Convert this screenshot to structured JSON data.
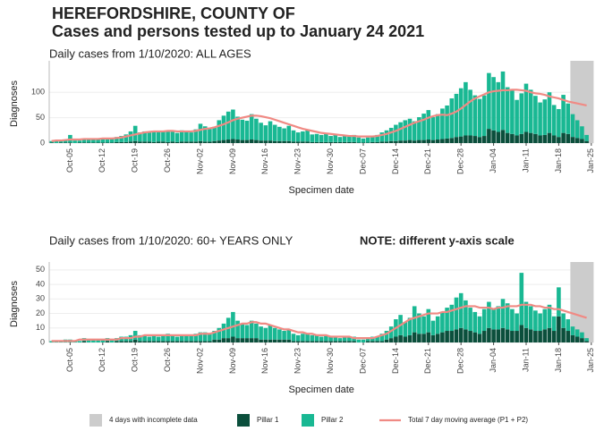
{
  "header": {
    "title": "HEREFORDSHIRE, COUNTY OF",
    "subtitle": "Cases and persons tested up to January 24 2021"
  },
  "chart_data": [
    {
      "type": "bar",
      "title": "Daily cases from 1/10/2020: ALL AGES",
      "ylabel": "Diagnoses",
      "xlabel": "Specimen date",
      "ylim": [
        0,
        155
      ],
      "yticks": [
        0,
        50,
        100
      ],
      "grid": true,
      "shade": {
        "name": "4 days with incomplete data",
        "color": "#cccccc",
        "days": 4
      },
      "categories": [
        null,
        null,
        null,
        null,
        "Oct-05",
        null,
        null,
        null,
        null,
        null,
        null,
        "Oct-12",
        null,
        null,
        null,
        null,
        null,
        null,
        "Oct-19",
        null,
        null,
        null,
        null,
        null,
        null,
        "Oct-26",
        null,
        null,
        null,
        null,
        null,
        null,
        "Nov-02",
        null,
        null,
        null,
        null,
        null,
        null,
        "Nov-09",
        null,
        null,
        null,
        null,
        null,
        null,
        "Nov-16",
        null,
        null,
        null,
        null,
        null,
        null,
        "Nov-23",
        null,
        null,
        null,
        null,
        null,
        null,
        "Nov-30",
        null,
        null,
        null,
        null,
        null,
        null,
        "Dec-07",
        null,
        null,
        null,
        null,
        null,
        null,
        "Dec-14",
        null,
        null,
        null,
        null,
        null,
        null,
        "Dec-21",
        null,
        null,
        null,
        null,
        null,
        null,
        "Dec-28",
        null,
        null,
        null,
        null,
        null,
        null,
        "Jan-04",
        null,
        null,
        null,
        null,
        null,
        null,
        "Jan-11",
        null,
        null,
        null,
        null,
        null,
        null,
        "Jan-18",
        null,
        null,
        null,
        null,
        null,
        null,
        "Jan-25"
      ],
      "series": [
        {
          "name": "Pillar 1",
          "type": "bar",
          "color": "#0b4f3c",
          "values": [
            1,
            0,
            1,
            1,
            1,
            0,
            1,
            1,
            1,
            1,
            1,
            1,
            1,
            1,
            2,
            2,
            2,
            3,
            4,
            3,
            3,
            3,
            2,
            3,
            3,
            2,
            3,
            2,
            3,
            3,
            3,
            3,
            4,
            3,
            3,
            4,
            5,
            6,
            7,
            8,
            7,
            6,
            6,
            7,
            6,
            5,
            5,
            5,
            4,
            4,
            4,
            4,
            3,
            3,
            3,
            3,
            2,
            2,
            2,
            2,
            2,
            2,
            2,
            2,
            2,
            2,
            1,
            1,
            1,
            2,
            2,
            3,
            3,
            4,
            4,
            5,
            5,
            6,
            5,
            6,
            6,
            7,
            6,
            7,
            8,
            9,
            10,
            12,
            13,
            15,
            15,
            14,
            12,
            14,
            28,
            25,
            22,
            26,
            20,
            18,
            15,
            18,
            22,
            20,
            18,
            15,
            16,
            20,
            15,
            12,
            20,
            18,
            12,
            10,
            8,
            4,
            null
          ]
        },
        {
          "name": "Pillar 2",
          "type": "bar",
          "color": "#19b893",
          "values": [
            3,
            5,
            4,
            6,
            15,
            5,
            4,
            6,
            7,
            8,
            6,
            8,
            7,
            9,
            10,
            12,
            15,
            20,
            30,
            18,
            20,
            18,
            22,
            19,
            21,
            23,
            20,
            18,
            22,
            20,
            18,
            24,
            34,
            30,
            25,
            28,
            40,
            48,
            55,
            58,
            45,
            40,
            38,
            50,
            42,
            35,
            30,
            38,
            32,
            28,
            25,
            30,
            22,
            18,
            20,
            22,
            15,
            16,
            14,
            18,
            12,
            14,
            10,
            12,
            11,
            14,
            10,
            8,
            10,
            12,
            14,
            18,
            22,
            26,
            32,
            36,
            40,
            42,
            38,
            45,
            52,
            58,
            45,
            50,
            60,
            65,
            78,
            85,
            95,
            105,
            90,
            80,
            75,
            80,
            110,
            105,
            98,
            115,
            90,
            85,
            70,
            80,
            95,
            85,
            75,
            65,
            70,
            80,
            60,
            55,
            75,
            60,
            45,
            35,
            25,
            12,
            null
          ]
        },
        {
          "name": "Total 7 day moving average (P1 + P2)",
          "type": "line",
          "color": "#f08a84",
          "values": [
            4,
            5,
            5,
            6,
            7,
            7,
            7,
            8,
            8,
            8,
            8,
            9,
            9,
            9,
            10,
            11,
            13,
            15,
            17,
            19,
            21,
            22,
            23,
            23,
            23,
            24,
            24,
            23,
            23,
            23,
            23,
            24,
            26,
            28,
            29,
            31,
            34,
            37,
            41,
            45,
            48,
            50,
            52,
            54,
            54,
            53,
            51,
            49,
            46,
            43,
            40,
            37,
            34,
            31,
            28,
            26,
            24,
            22,
            20,
            19,
            18,
            17,
            16,
            15,
            14,
            14,
            13,
            13,
            13,
            13,
            14,
            16,
            18,
            21,
            24,
            28,
            32,
            36,
            40,
            43,
            46,
            50,
            53,
            55,
            56,
            55,
            58,
            62,
            68,
            75,
            82,
            88,
            92,
            96,
            100,
            102,
            103,
            104,
            104,
            105,
            105,
            104,
            103,
            100,
            98,
            97,
            95,
            92,
            90,
            88,
            85,
            82,
            80,
            78,
            76,
            74,
            null
          ]
        }
      ]
    },
    {
      "type": "bar",
      "title": "Daily cases from 1/10/2020: 60+ YEARS ONLY",
      "note": "NOTE: different y-axis scale",
      "ylabel": "Diagnoses",
      "xlabel": "Specimen date",
      "ylim": [
        0,
        53
      ],
      "yticks": [
        0,
        10,
        20,
        30,
        40,
        50
      ],
      "grid": true,
      "shade": {
        "name": "4 days with incomplete data",
        "color": "#cccccc",
        "days": 4
      },
      "categories": [
        null,
        null,
        null,
        null,
        "Oct-05",
        null,
        null,
        null,
        null,
        null,
        null,
        "Oct-12",
        null,
        null,
        null,
        null,
        null,
        null,
        "Oct-19",
        null,
        null,
        null,
        null,
        null,
        null,
        "Oct-26",
        null,
        null,
        null,
        null,
        null,
        null,
        "Nov-02",
        null,
        null,
        null,
        null,
        null,
        null,
        "Nov-09",
        null,
        null,
        null,
        null,
        null,
        null,
        "Nov-16",
        null,
        null,
        null,
        null,
        null,
        null,
        "Nov-23",
        null,
        null,
        null,
        null,
        null,
        null,
        "Nov-30",
        null,
        null,
        null,
        null,
        null,
        null,
        "Dec-07",
        null,
        null,
        null,
        null,
        null,
        null,
        "Dec-14",
        null,
        null,
        null,
        null,
        null,
        null,
        "Dec-21",
        null,
        null,
        null,
        null,
        null,
        null,
        "Dec-28",
        null,
        null,
        null,
        null,
        null,
        null,
        "Jan-04",
        null,
        null,
        null,
        null,
        null,
        null,
        "Jan-11",
        null,
        null,
        null,
        null,
        null,
        null,
        "Jan-18",
        null,
        null,
        null,
        null,
        null,
        null,
        "Jan-25"
      ],
      "series": [
        {
          "name": "Pillar 1",
          "type": "bar",
          "color": "#0b4f3c",
          "values": [
            0,
            0,
            0,
            0,
            0,
            0,
            0,
            1,
            0,
            0,
            0,
            0,
            1,
            0,
            1,
            1,
            1,
            1,
            2,
            1,
            1,
            1,
            1,
            1,
            1,
            1,
            1,
            1,
            1,
            1,
            1,
            1,
            1,
            1,
            1,
            2,
            2,
            3,
            3,
            4,
            3,
            3,
            3,
            3,
            3,
            2,
            2,
            2,
            2,
            2,
            2,
            2,
            1,
            1,
            1,
            1,
            1,
            1,
            1,
            1,
            1,
            1,
            1,
            1,
            1,
            1,
            0,
            0,
            1,
            1,
            1,
            1,
            2,
            3,
            4,
            5,
            4,
            5,
            7,
            6,
            6,
            7,
            5,
            6,
            7,
            8,
            8,
            9,
            10,
            9,
            8,
            7,
            6,
            8,
            10,
            9,
            9,
            10,
            9,
            8,
            8,
            12,
            10,
            9,
            8,
            8,
            9,
            10,
            8,
            18,
            10,
            8,
            5,
            4,
            3,
            1,
            null
          ]
        },
        {
          "name": "Pillar 2",
          "type": "bar",
          "color": "#19b893",
          "values": [
            1,
            1,
            1,
            2,
            2,
            1,
            1,
            2,
            2,
            2,
            2,
            2,
            2,
            2,
            2,
            3,
            3,
            4,
            6,
            4,
            4,
            3,
            4,
            3,
            4,
            5,
            4,
            3,
            4,
            4,
            4,
            5,
            6,
            6,
            5,
            6,
            8,
            10,
            14,
            17,
            12,
            10,
            9,
            12,
            10,
            9,
            8,
            10,
            8,
            7,
            6,
            7,
            5,
            4,
            5,
            5,
            4,
            4,
            3,
            4,
            3,
            3,
            2,
            3,
            3,
            3,
            2,
            2,
            2,
            3,
            3,
            5,
            6,
            8,
            12,
            14,
            10,
            12,
            18,
            14,
            12,
            16,
            10,
            12,
            14,
            16,
            18,
            22,
            24,
            20,
            16,
            14,
            12,
            15,
            18,
            14,
            16,
            20,
            18,
            15,
            12,
            36,
            18,
            16,
            14,
            12,
            14,
            16,
            10,
            20,
            10,
            8,
            6,
            5,
            4,
            2,
            null
          ]
        },
        {
          "name": "Total 7 day moving average (P1 + P2)",
          "type": "line",
          "color": "#f08a84",
          "values": [
            1,
            1,
            1,
            1,
            1,
            1,
            2,
            2,
            2,
            2,
            2,
            2,
            2,
            2,
            2,
            3,
            3,
            3,
            4,
            4,
            5,
            5,
            5,
            5,
            5,
            5,
            5,
            5,
            5,
            5,
            5,
            5,
            6,
            6,
            6,
            7,
            8,
            9,
            10,
            11,
            12,
            13,
            13,
            14,
            14,
            13,
            13,
            12,
            11,
            10,
            9,
            9,
            8,
            7,
            7,
            6,
            6,
            5,
            5,
            5,
            4,
            4,
            4,
            4,
            4,
            3,
            3,
            3,
            3,
            3,
            4,
            5,
            6,
            8,
            10,
            12,
            14,
            16,
            17,
            18,
            19,
            20,
            20,
            20,
            21,
            21,
            22,
            23,
            24,
            25,
            25,
            25,
            24,
            24,
            24,
            23,
            24,
            24,
            25,
            25,
            25,
            26,
            26,
            26,
            25,
            25,
            24,
            24,
            23,
            23,
            22,
            21,
            20,
            19,
            18,
            17,
            null
          ]
        }
      ]
    }
  ]
}
